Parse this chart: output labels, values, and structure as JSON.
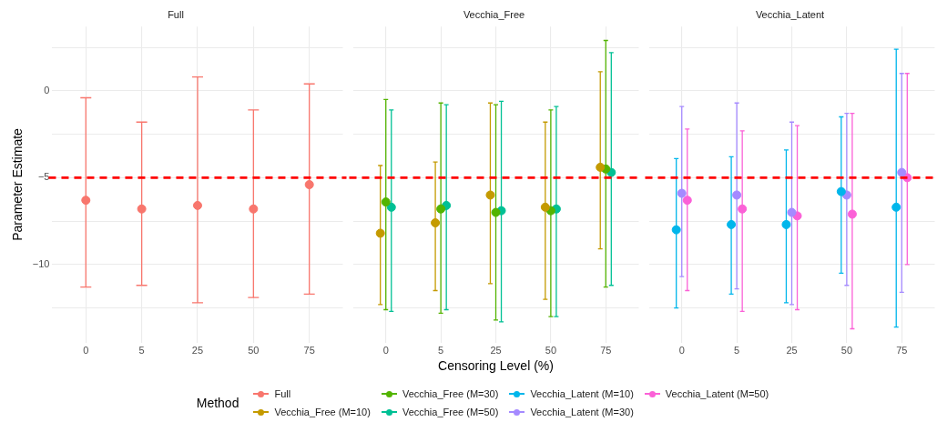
{
  "chart_data": [
    {
      "type": "scatter",
      "title": "Full",
      "ylabel": "Parameter Estimate",
      "legend_title": "Method",
      "legend": "bottom",
      "grid": true,
      "marker": "circle",
      "categories": [
        "0",
        "5",
        "25",
        "50",
        "75"
      ],
      "ylim": [
        -14.5,
        3.7
      ],
      "yticks": [
        {
          "value": -12.5,
          "label": null
        },
        -10,
        {
          "value": -7.5,
          "label": null
        },
        -5,
        {
          "value": -2.5,
          "label": null
        },
        0,
        {
          "value": 2.5,
          "label": null
        }
      ],
      "ref_lines": [
        {
          "axis": "y",
          "value": -5,
          "color": "#ff0000",
          "line_style": "dashed"
        }
      ],
      "series": [
        {
          "name": "Full",
          "color": "#f8766d",
          "values": [
            -6.3,
            -6.8,
            -6.6,
            -6.8,
            -5.4
          ],
          "errors": [
            [
              -11.3,
              -0.4
            ],
            [
              -11.2,
              -1.8
            ],
            [
              -12.2,
              0.8
            ],
            [
              -11.9,
              -1.1
            ],
            [
              -11.7,
              0.4
            ]
          ]
        }
      ]
    },
    {
      "type": "scatter",
      "title": "Vecchia_Free",
      "xlabel": "Censoring Level (%)",
      "legend": "bottom",
      "grid": true,
      "marker": "circle",
      "tick_labels": "x",
      "categories": [
        "0",
        "5",
        "25",
        "50",
        "75"
      ],
      "ylim": [
        -14.5,
        3.7
      ],
      "yticks": [
        {
          "value": -12.5,
          "label": null
        },
        -10,
        {
          "value": -7.5,
          "label": null
        },
        -5,
        {
          "value": -2.5,
          "label": null
        },
        0,
        {
          "value": 2.5,
          "label": null
        }
      ],
      "ref_lines": [
        {
          "axis": "y",
          "value": -5,
          "color": "#ff0000",
          "line_style": "dashed"
        }
      ],
      "series": [
        {
          "name": "Vecchia_Free (M=10)",
          "color": "#c49a00",
          "values": [
            -8.2,
            -7.6,
            -6.0,
            -6.7,
            -4.4
          ],
          "errors": [
            [
              -12.3,
              -4.3
            ],
            [
              -11.5,
              -4.1
            ],
            [
              -11.1,
              -0.7
            ],
            [
              -12.0,
              -1.8
            ],
            [
              -9.1,
              1.1
            ]
          ]
        },
        {
          "name": "Vecchia_Free (M=30)",
          "color": "#53b400",
          "values": [
            -6.4,
            -6.8,
            -7.0,
            -6.9,
            -4.5
          ],
          "errors": [
            [
              -12.6,
              -0.5
            ],
            [
              -12.8,
              -0.7
            ],
            [
              -13.2,
              -0.8
            ],
            [
              -13.0,
              -1.1
            ],
            [
              -11.3,
              2.9
            ]
          ]
        },
        {
          "name": "Vecchia_Free (M=50)",
          "color": "#00c094",
          "values": [
            -6.7,
            -6.6,
            -6.9,
            -6.8,
            -4.7
          ],
          "errors": [
            [
              -12.7,
              -1.1
            ],
            [
              -12.6,
              -0.8
            ],
            [
              -13.3,
              -0.6
            ],
            [
              -13.0,
              -0.9
            ],
            [
              -11.2,
              2.2
            ]
          ]
        }
      ]
    },
    {
      "type": "scatter",
      "title": "Vecchia_Latent",
      "legend": "bottom",
      "grid": true,
      "marker": "circle",
      "tick_labels": "x",
      "categories": [
        "0",
        "5",
        "25",
        "50",
        "75"
      ],
      "ylim": [
        -14.5,
        3.7
      ],
      "yticks": [
        {
          "value": -12.5,
          "label": null
        },
        -10,
        {
          "value": -7.5,
          "label": null
        },
        -5,
        {
          "value": -2.5,
          "label": null
        },
        0,
        {
          "value": 2.5,
          "label": null
        }
      ],
      "ref_lines": [
        {
          "axis": "y",
          "value": -5,
          "color": "#ff0000",
          "line_style": "dashed"
        }
      ],
      "series": [
        {
          "name": "Vecchia_Latent (M=10)",
          "color": "#00b6eb",
          "values": [
            -8.0,
            -7.7,
            -7.7,
            -5.8,
            -6.7
          ],
          "errors": [
            [
              -12.5,
              -3.9
            ],
            [
              -11.7,
              -3.8
            ],
            [
              -12.2,
              -3.4
            ],
            [
              -10.5,
              -1.5
            ],
            [
              -13.6,
              2.4
            ]
          ]
        },
        {
          "name": "Vecchia_Latent (M=30)",
          "color": "#a58aff",
          "values": [
            -5.9,
            -6.0,
            -7.0,
            -6.0,
            -4.7
          ],
          "errors": [
            [
              -10.7,
              -0.9
            ],
            [
              -11.4,
              -0.7
            ],
            [
              -12.3,
              -1.8
            ],
            [
              -11.2,
              -1.3
            ],
            [
              -11.6,
              1.0
            ]
          ]
        },
        {
          "name": "Vecchia_Latent (M=50)",
          "color": "#fb61d7",
          "values": [
            -6.3,
            -6.8,
            -7.2,
            -7.1,
            -5.0
          ],
          "errors": [
            [
              -11.5,
              -2.2
            ],
            [
              -12.7,
              -2.3
            ],
            [
              -12.6,
              -2.0
            ],
            [
              -13.7,
              -1.3
            ],
            [
              -10.0,
              1.0
            ]
          ]
        }
      ]
    }
  ]
}
